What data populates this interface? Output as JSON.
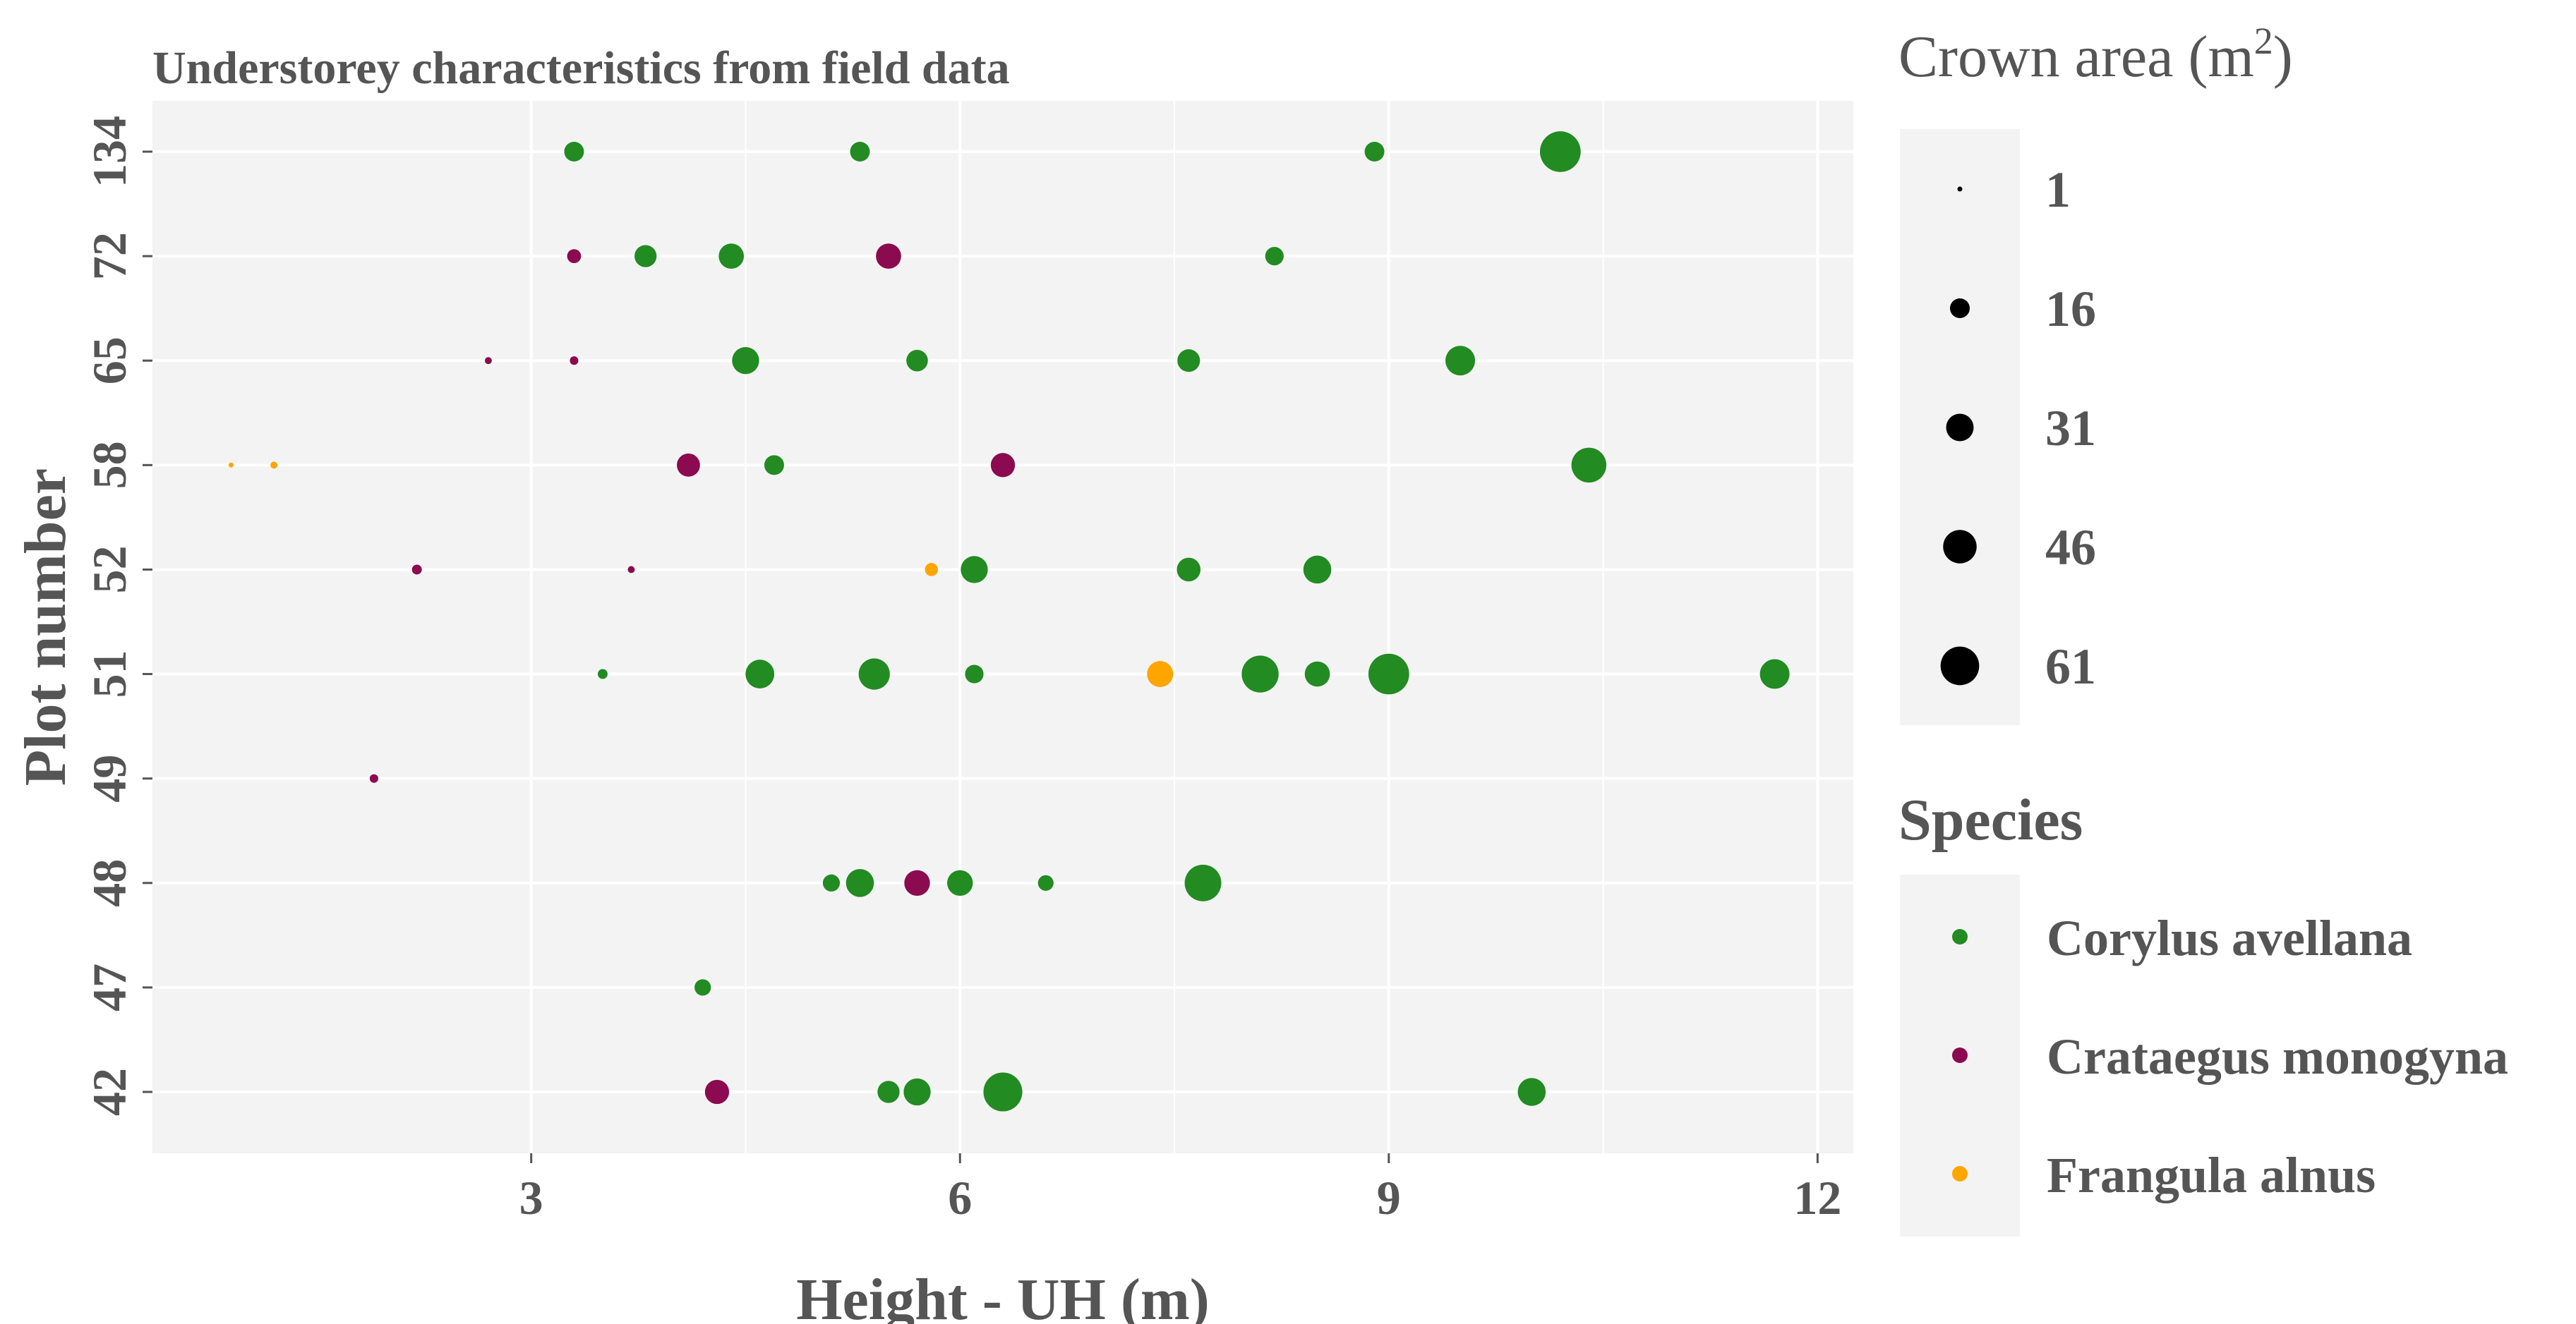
{
  "chart_data": {
    "type": "scatter",
    "title": "Understorey characteristics from field data",
    "xlabel": "Height - UH (m)",
    "ylabel": "Plot number",
    "xlim": [
      0.35,
      12.25
    ],
    "x_ticks": [
      3,
      6,
      9,
      12
    ],
    "x_tick_labels": [
      "3",
      "6",
      "9",
      "12"
    ],
    "y_categories": [
      "42",
      "47",
      "48",
      "49",
      "51",
      "52",
      "58",
      "65",
      "72",
      "134"
    ],
    "grid": true,
    "size_legend": {
      "title_main": "Crown area (m",
      "title_sup": "2",
      "title_end": ")",
      "values": [
        1,
        16,
        31,
        46,
        61
      ],
      "labels": [
        "1",
        "16",
        "31",
        "46",
        "61"
      ]
    },
    "color_legend": {
      "title": "Species",
      "placement": "right",
      "entries": [
        {
          "name": "Corylus avellana",
          "color": "#228B22"
        },
        {
          "name": "Crataegus monogyna",
          "color": "#8B0A50"
        },
        {
          "name": "Frangula alnus",
          "color": "#FFA500"
        }
      ]
    },
    "series": [
      {
        "name": "Corylus avellana",
        "color": "#228B22",
        "points": [
          {
            "x": 3.3,
            "y": "134",
            "area": 16
          },
          {
            "x": 5.3,
            "y": "134",
            "area": 16
          },
          {
            "x": 8.9,
            "y": "134",
            "area": 16
          },
          {
            "x": 10.2,
            "y": "134",
            "area": 68
          },
          {
            "x": 3.8,
            "y": "72",
            "area": 20
          },
          {
            "x": 4.4,
            "y": "72",
            "area": 26
          },
          {
            "x": 8.2,
            "y": "72",
            "area": 14
          },
          {
            "x": 4.5,
            "y": "65",
            "area": 30
          },
          {
            "x": 5.7,
            "y": "65",
            "area": 19
          },
          {
            "x": 7.6,
            "y": "65",
            "area": 21
          },
          {
            "x": 9.5,
            "y": "65",
            "area": 36
          },
          {
            "x": 4.7,
            "y": "58",
            "area": 16
          },
          {
            "x": 10.4,
            "y": "58",
            "area": 50
          },
          {
            "x": 6.1,
            "y": "52",
            "area": 30
          },
          {
            "x": 7.6,
            "y": "52",
            "area": 23
          },
          {
            "x": 8.5,
            "y": "52",
            "area": 32
          },
          {
            "x": 3.5,
            "y": "51",
            "area": 4
          },
          {
            "x": 4.6,
            "y": "51",
            "area": 34
          },
          {
            "x": 5.4,
            "y": "51",
            "area": 40
          },
          {
            "x": 6.1,
            "y": "51",
            "area": 14
          },
          {
            "x": 8.1,
            "y": "51",
            "area": 56
          },
          {
            "x": 8.5,
            "y": "51",
            "area": 26
          },
          {
            "x": 9.0,
            "y": "51",
            "area": 68
          },
          {
            "x": 11.7,
            "y": "51",
            "area": 36
          },
          {
            "x": 5.1,
            "y": "48",
            "area": 12
          },
          {
            "x": 5.3,
            "y": "48",
            "area": 32
          },
          {
            "x": 6.0,
            "y": "48",
            "area": 27
          },
          {
            "x": 6.6,
            "y": "48",
            "area": 10
          },
          {
            "x": 7.7,
            "y": "48",
            "area": 55
          },
          {
            "x": 4.2,
            "y": "47",
            "area": 11
          },
          {
            "x": 5.5,
            "y": "42",
            "area": 20
          },
          {
            "x": 5.7,
            "y": "42",
            "area": 30
          },
          {
            "x": 6.3,
            "y": "42",
            "area": 62
          },
          {
            "x": 10.0,
            "y": "42",
            "area": 32
          }
        ]
      },
      {
        "name": "Crataegus monogyna",
        "color": "#8B0A50",
        "points": [
          {
            "x": 3.3,
            "y": "72",
            "area": 8
          },
          {
            "x": 5.5,
            "y": "72",
            "area": 26
          },
          {
            "x": 2.7,
            "y": "65",
            "area": 2
          },
          {
            "x": 3.3,
            "y": "65",
            "area": 3
          },
          {
            "x": 4.1,
            "y": "58",
            "area": 22
          },
          {
            "x": 6.3,
            "y": "58",
            "area": 24
          },
          {
            "x": 2.2,
            "y": "52",
            "area": 4
          },
          {
            "x": 3.7,
            "y": "52",
            "area": 2
          },
          {
            "x": 1.9,
            "y": "49",
            "area": 3
          },
          {
            "x": 5.7,
            "y": "48",
            "area": 27
          },
          {
            "x": 4.3,
            "y": "42",
            "area": 24
          }
        ]
      },
      {
        "name": "Frangula alnus",
        "color": "#FFA500",
        "points": [
          {
            "x": 0.9,
            "y": "58",
            "area": 1
          },
          {
            "x": 1.2,
            "y": "58",
            "area": 2
          },
          {
            "x": 5.8,
            "y": "52",
            "area": 7
          },
          {
            "x": 7.4,
            "y": "51",
            "area": 28
          }
        ]
      }
    ]
  }
}
